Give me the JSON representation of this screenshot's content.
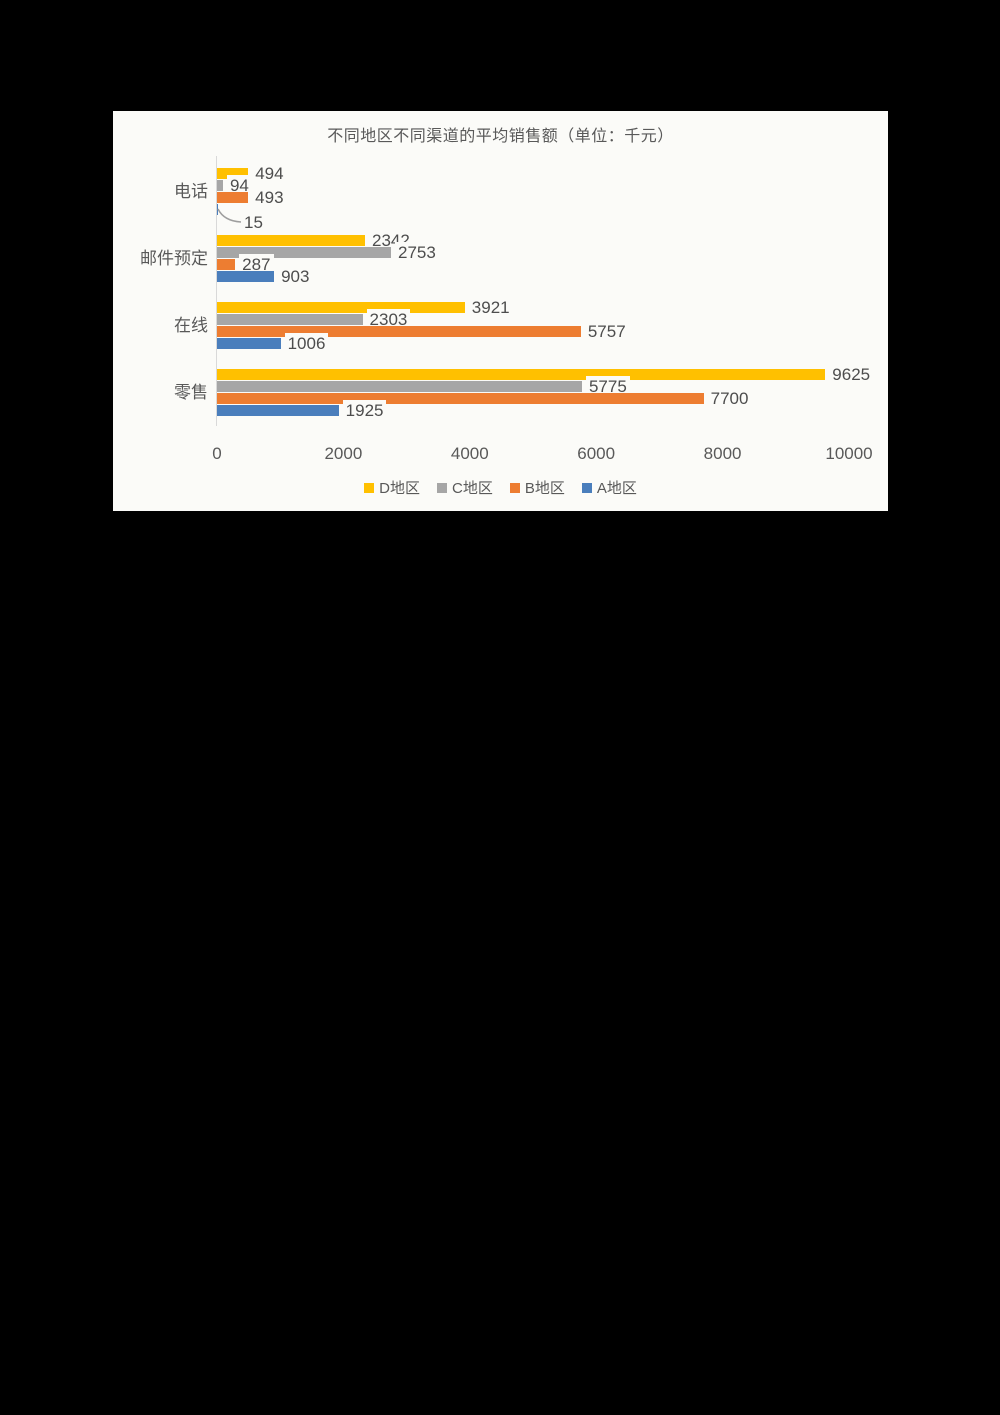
{
  "page": {
    "background_color": "#000000",
    "panel_background_color": "#fbfbf8"
  },
  "chart_data": {
    "type": "bar",
    "orientation": "horizontal",
    "title": "不同地区不同渠道的平均销售额（单位：千元）",
    "xlabel": "",
    "ylabel": "",
    "categories": [
      "电话",
      "邮件预定",
      "在线",
      "零售"
    ],
    "series": [
      {
        "name": "D地区",
        "color": "#FFC000",
        "values": [
          494,
          2342,
          3921,
          9625
        ]
      },
      {
        "name": "C地区",
        "color": "#A6A6A6",
        "values": [
          94,
          2753,
          2303,
          5775
        ]
      },
      {
        "name": "B地区",
        "color": "#ED7D31",
        "values": [
          493,
          287,
          5757,
          7700
        ]
      },
      {
        "name": "A地区",
        "color": "#4A7EBC",
        "values": [
          15,
          903,
          1006,
          1925
        ]
      }
    ],
    "x_axis": {
      "min": 0,
      "max": 10000,
      "tick_interval": 2000,
      "tick_labels": [
        "0",
        "2000",
        "4000",
        "6000",
        "8000",
        "10000"
      ]
    },
    "data_labels": true,
    "grid": false,
    "legend_position": "bottom",
    "legend_labels": [
      "D地区",
      "C地区",
      "B地区",
      "A地区"
    ],
    "text_color": "#595959",
    "axis_line_color": "#d9d9d9",
    "leader_line_color": "#9e9e9e"
  }
}
